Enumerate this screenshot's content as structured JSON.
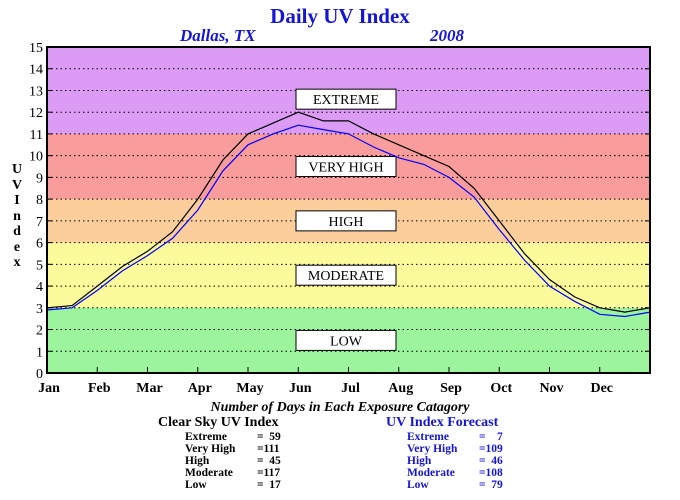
{
  "chart_data": {
    "type": "line",
    "title": "Daily UV Index",
    "subtitle_left": "Dallas, TX",
    "subtitle_right": "2008",
    "ylabel": "UV Index",
    "ylim": [
      0,
      15
    ],
    "yticks": [
      0,
      1,
      2,
      3,
      4,
      5,
      6,
      7,
      8,
      9,
      10,
      11,
      12,
      13,
      14,
      15
    ],
    "month_labels": [
      "Jan",
      "Feb",
      "Mar",
      "Apr",
      "May",
      "Jun",
      "Jul",
      "Aug",
      "Sep",
      "Oct",
      "Nov",
      "Dec"
    ],
    "bands": [
      {
        "label": "LOW",
        "from": 0,
        "to": 3,
        "color": "#9cf59c",
        "label_y": 1.5
      },
      {
        "label": "MODERATE",
        "from": 3,
        "to": 6,
        "color": "#fbfb9c",
        "label_y": 4.5
      },
      {
        "label": "HIGH",
        "from": 6,
        "to": 8,
        "color": "#fbce9c",
        "label_y": 7
      },
      {
        "label": "VERY HIGH",
        "from": 8,
        "to": 11,
        "color": "#f89c9c",
        "label_y": 9.5
      },
      {
        "label": "EXTREME",
        "from": 11,
        "to": 15,
        "color": "#dc9cf5",
        "label_y": 12.6
      }
    ],
    "grid": true,
    "series": [
      {
        "name": "Clear Sky UV Index",
        "color": "#000000",
        "months": [
          1,
          1.5,
          2,
          2.5,
          3,
          3.5,
          4,
          4.5,
          5,
          5.5,
          6,
          6.5,
          7,
          7.5,
          8,
          8.5,
          9,
          9.5,
          10,
          10.5,
          11,
          11.5,
          12,
          12.5,
          13
        ],
        "values": [
          3.0,
          3.1,
          4.0,
          4.9,
          5.6,
          6.5,
          8.0,
          9.8,
          11.0,
          11.5,
          12.0,
          11.6,
          11.6,
          11.0,
          10.5,
          10.0,
          9.5,
          8.5,
          7.0,
          5.5,
          4.3,
          3.5,
          3.0,
          2.8,
          3.0
        ]
      },
      {
        "name": "UV Index Forecast",
        "color": "#0000ff",
        "months": [
          1,
          1.5,
          2,
          2.5,
          3,
          3.5,
          4,
          4.5,
          5,
          5.5,
          6,
          6.5,
          7,
          7.5,
          8,
          8.5,
          9,
          9.5,
          10,
          10.5,
          11,
          11.5,
          12,
          12.5,
          13
        ],
        "values": [
          2.9,
          3.0,
          3.8,
          4.7,
          5.4,
          6.2,
          7.5,
          9.3,
          10.5,
          11.0,
          11.4,
          11.2,
          11.0,
          10.4,
          9.9,
          9.6,
          9.0,
          8.1,
          6.6,
          5.2,
          4.0,
          3.3,
          2.7,
          2.6,
          2.8
        ]
      }
    ]
  },
  "stats": {
    "heading": "Number of Days in Each Exposure Catagory",
    "clear_sky": {
      "title": "Clear Sky UV Index",
      "rows": [
        {
          "label": "Extreme",
          "value": "=  59"
        },
        {
          "label": "Very High",
          "value": "=111"
        },
        {
          "label": "High",
          "value": "=  45"
        },
        {
          "label": "Moderate",
          "value": "=117"
        },
        {
          "label": "Low",
          "value": "=  17"
        }
      ]
    },
    "forecast": {
      "title": "UV Index Forecast",
      "rows": [
        {
          "label": "Extreme",
          "value": "=    7"
        },
        {
          "label": "Very High",
          "value": "=109"
        },
        {
          "label": "High",
          "value": "=  46"
        },
        {
          "label": "Moderate",
          "value": "=108"
        },
        {
          "label": "Low",
          "value": "=  79"
        }
      ]
    }
  }
}
